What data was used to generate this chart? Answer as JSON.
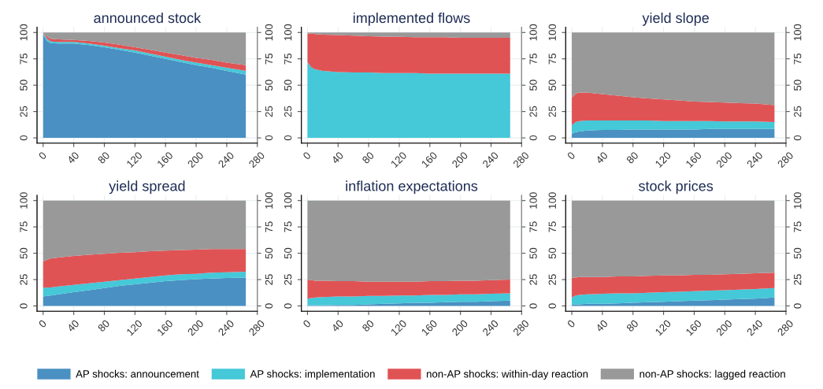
{
  "chart_data": [
    {
      "type": "area",
      "title": "announced stock",
      "stacked": true,
      "grid": true,
      "legend": "bottom",
      "x": [
        0,
        5,
        10,
        20,
        40,
        60,
        80,
        100,
        120,
        140,
        160,
        180,
        200,
        220,
        240,
        265
      ],
      "xlim": [
        -8,
        280
      ],
      "xticks": [
        0,
        40,
        80,
        120,
        160,
        200,
        240,
        280
      ],
      "ylim": [
        -5,
        105
      ],
      "yticks": [
        0,
        25,
        50,
        75,
        100
      ],
      "y2lim": [
        -5,
        105
      ],
      "y2ticks": [
        0,
        25,
        50,
        75,
        100
      ],
      "series": [
        {
          "name": "AP shocks: announcement",
          "color": "#4a90c2",
          "values": [
            98,
            92,
            90,
            89.5,
            89.5,
            88,
            86,
            83.5,
            81,
            78,
            75,
            72,
            69,
            66.5,
            63.5,
            60
          ]
        },
        {
          "name": "AP shocks: implementation",
          "color": "#45c8d8",
          "values": [
            1,
            2,
            1.5,
            1.5,
            1.5,
            1.5,
            1.5,
            1.5,
            2,
            2,
            2,
            2,
            2.5,
            2.5,
            3,
            3.5
          ]
        },
        {
          "name": "non-AP shocks: within-day reaction",
          "color": "#e05355",
          "values": [
            0.5,
            2,
            2.5,
            2.5,
            2,
            2.5,
            3,
            3.5,
            3,
            3.5,
            4,
            4.5,
            4.5,
            5,
            5,
            5.5
          ]
        },
        {
          "name": "non-AP shocks: lagged reaction",
          "color": "#999999",
          "values": [
            0.5,
            4,
            6,
            6.5,
            7,
            8,
            9.5,
            11.5,
            14,
            16.5,
            19,
            21.5,
            24,
            26,
            28.5,
            31
          ]
        }
      ]
    },
    {
      "type": "area",
      "title": "implemented flows",
      "stacked": true,
      "grid": true,
      "x": [
        0,
        5,
        10,
        20,
        40,
        60,
        80,
        100,
        120,
        140,
        160,
        180,
        200,
        220,
        240,
        265
      ],
      "xlim": [
        -8,
        280
      ],
      "xticks": [
        0,
        40,
        80,
        120,
        160,
        200,
        240,
        280
      ],
      "ylim": [
        -5,
        105
      ],
      "yticks": [
        0,
        25,
        50,
        75,
        100
      ],
      "y2lim": [
        -5,
        105
      ],
      "y2ticks": [
        0,
        25,
        50,
        75,
        100
      ],
      "series": [
        {
          "color": "#45c8d8",
          "values": [
            72,
            67,
            65,
            63.5,
            62.5,
            62,
            62,
            61.5,
            61.5,
            61.5,
            61,
            61,
            61,
            61,
            61,
            61
          ]
        },
        {
          "color": "#e05355",
          "values": [
            27,
            32,
            33.5,
            34.5,
            35,
            35,
            34.5,
            34.5,
            34.5,
            34,
            34.5,
            34.5,
            34,
            34,
            34,
            34
          ]
        },
        {
          "color": "#999999",
          "values": [
            1,
            1,
            1.5,
            2,
            2.5,
            3,
            3.5,
            4,
            4,
            4.5,
            4.5,
            4.5,
            5,
            5,
            5,
            5
          ]
        }
      ]
    },
    {
      "type": "area",
      "title": "yield slope",
      "stacked": true,
      "grid": true,
      "x": [
        0,
        5,
        10,
        20,
        40,
        60,
        80,
        100,
        120,
        140,
        160,
        180,
        200,
        220,
        240,
        265
      ],
      "xlim": [
        -8,
        280
      ],
      "xticks": [
        0,
        40,
        80,
        120,
        160,
        200,
        240,
        280
      ],
      "ylim": [
        -5,
        105
      ],
      "yticks": [
        0,
        25,
        50,
        75,
        100
      ],
      "y2lim": [
        -5,
        105
      ],
      "y2ticks": [
        0,
        25,
        50,
        75,
        100
      ],
      "series": [
        {
          "color": "#4a90c2",
          "values": [
            4,
            5.5,
            6,
            7,
            7.5,
            7.5,
            8,
            8,
            8,
            8,
            8,
            8.5,
            8.5,
            8.5,
            8.5,
            8.5
          ]
        },
        {
          "color": "#45c8d8",
          "values": [
            8,
            9.5,
            10,
            9.5,
            9,
            9,
            8.5,
            8.5,
            8,
            8,
            8,
            7.5,
            7,
            7,
            7,
            6.5
          ]
        },
        {
          "color": "#e05355",
          "values": [
            26,
            27,
            27,
            26.5,
            25,
            23.5,
            22,
            21,
            20.5,
            19.5,
            18.5,
            18,
            18,
            17.5,
            17,
            16
          ]
        },
        {
          "color": "#999999",
          "values": [
            62,
            58,
            57,
            57,
            58.5,
            60,
            61.5,
            62.5,
            63.5,
            64.5,
            65.5,
            66,
            66.5,
            67,
            67.5,
            69
          ]
        }
      ]
    },
    {
      "type": "area",
      "title": "yield spread",
      "stacked": true,
      "grid": true,
      "x": [
        0,
        5,
        10,
        20,
        40,
        60,
        80,
        100,
        120,
        140,
        160,
        180,
        200,
        220,
        240,
        265
      ],
      "xlim": [
        -8,
        280
      ],
      "xticks": [
        0,
        40,
        80,
        120,
        160,
        200,
        240,
        280
      ],
      "ylim": [
        -5,
        105
      ],
      "yticks": [
        0,
        25,
        50,
        75,
        100
      ],
      "y2lim": [
        -5,
        105
      ],
      "y2ticks": [
        0,
        25,
        50,
        75,
        100
      ],
      "series": [
        {
          "color": "#4a90c2",
          "values": [
            9,
            9.5,
            10,
            11,
            13,
            15,
            17,
            19,
            20.5,
            22,
            23.5,
            24.5,
            25.5,
            26,
            26.5,
            27
          ]
        },
        {
          "color": "#45c8d8",
          "values": [
            8,
            8,
            7.5,
            7.5,
            7,
            6.5,
            6,
            5.5,
            5.5,
            5.5,
            5.5,
            5.5,
            5,
            5.5,
            5.5,
            5.5
          ]
        },
        {
          "color": "#e05355",
          "values": [
            25,
            26.5,
            27.5,
            27.5,
            27.5,
            27,
            26.5,
            26,
            25,
            24.5,
            23.5,
            23,
            23,
            22.5,
            22,
            21.5
          ]
        },
        {
          "color": "#999999",
          "values": [
            58,
            56,
            55,
            54,
            52.5,
            51.5,
            50.5,
            49.5,
            49,
            48,
            47.5,
            47,
            46.5,
            46,
            46,
            46
          ]
        }
      ]
    },
    {
      "type": "area",
      "title": "inflation expectations",
      "stacked": true,
      "grid": true,
      "x": [
        0,
        5,
        10,
        20,
        40,
        60,
        80,
        100,
        120,
        140,
        160,
        180,
        200,
        220,
        240,
        265
      ],
      "xlim": [
        -8,
        280
      ],
      "xticks": [
        0,
        40,
        80,
        120,
        160,
        200,
        240,
        280
      ],
      "ylim": [
        -5,
        105
      ],
      "yticks": [
        0,
        25,
        50,
        75,
        100
      ],
      "y2lim": [
        -5,
        105
      ],
      "y2ticks": [
        0,
        25,
        50,
        75,
        100
      ],
      "series": [
        {
          "color": "#4a90c2",
          "values": [
            0.5,
            0.5,
            0.5,
            0.5,
            1,
            1,
            1.5,
            2,
            2.5,
            3,
            3,
            3.5,
            4,
            4,
            4.5,
            5
          ]
        },
        {
          "color": "#45c8d8",
          "values": [
            6.5,
            7,
            7.5,
            8,
            8,
            8,
            8,
            7.5,
            7.5,
            7,
            7.5,
            7,
            7,
            7,
            7,
            7
          ]
        },
        {
          "color": "#e05355",
          "values": [
            18,
            17,
            16,
            15.5,
            14.5,
            14.5,
            13.5,
            13.5,
            13,
            13,
            13,
            13,
            13,
            13,
            13,
            13
          ]
        },
        {
          "color": "#999999",
          "values": [
            75,
            75.5,
            76,
            76,
            76.5,
            76.5,
            77,
            77,
            77,
            77,
            76.5,
            76.5,
            76,
            76,
            75.5,
            75
          ]
        }
      ]
    },
    {
      "type": "area",
      "title": "stock prices",
      "stacked": true,
      "grid": true,
      "x": [
        0,
        5,
        10,
        20,
        40,
        60,
        80,
        100,
        120,
        140,
        160,
        180,
        200,
        220,
        240,
        265
      ],
      "xlim": [
        -8,
        280
      ],
      "xticks": [
        0,
        40,
        80,
        120,
        160,
        200,
        240,
        280
      ],
      "ylim": [
        -5,
        105
      ],
      "yticks": [
        0,
        25,
        50,
        75,
        100
      ],
      "y2lim": [
        -5,
        105
      ],
      "y2ticks": [
        0,
        25,
        50,
        75,
        100
      ],
      "series": [
        {
          "color": "#4a90c2",
          "values": [
            1,
            1.5,
            1.5,
            2,
            2,
            2.5,
            3,
            3.5,
            4,
            4.5,
            5,
            5.5,
            6,
            6.5,
            7,
            8
          ]
        },
        {
          "color": "#45c8d8",
          "values": [
            7,
            8.5,
            9,
            9,
            9.5,
            9.5,
            9,
            9,
            9,
            9,
            9,
            9,
            9,
            9,
            9,
            9
          ]
        },
        {
          "color": "#e05355",
          "values": [
            19,
            17,
            17,
            16.5,
            16,
            16,
            16,
            16,
            16,
            15.5,
            15.5,
            15,
            15,
            15,
            15,
            14.5
          ]
        },
        {
          "color": "#999999",
          "values": [
            73,
            73,
            72.5,
            72.5,
            72.5,
            72,
            72,
            71.5,
            71,
            71,
            70.5,
            70.5,
            70,
            69.5,
            69,
            68.5
          ]
        }
      ]
    }
  ]
}
